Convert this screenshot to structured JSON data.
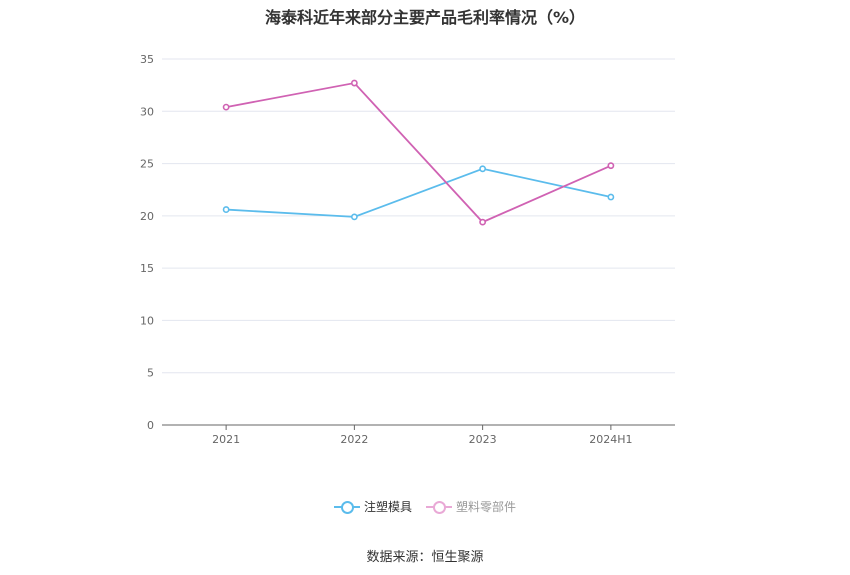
{
  "chart_data": {
    "type": "line",
    "title": "海泰科近年来部分主要产品毛利率情况（%）",
    "categories": [
      "2021",
      "2022",
      "2023",
      "2024H1"
    ],
    "ylim": [
      0,
      35
    ],
    "yticks": [
      0,
      5,
      10,
      15,
      20,
      25,
      30,
      35
    ],
    "grid": true,
    "legend_position": "bottom",
    "series": [
      {
        "name": "注塑模具",
        "color": "#5bbcec",
        "values": [
          20.6,
          19.9,
          24.5,
          21.8
        ]
      },
      {
        "name": "塑料零部件",
        "color": "#d062b3",
        "values": [
          30.4,
          32.7,
          19.4,
          24.8
        ]
      }
    ]
  },
  "source_text": "数据来源：恒生聚源"
}
